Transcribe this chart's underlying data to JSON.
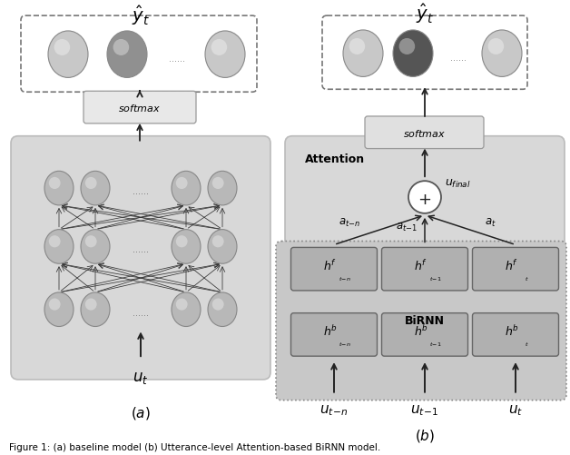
{
  "fig_width": 6.28,
  "fig_height": 5.02,
  "bg_color": "#ffffff",
  "neuron_light": "#d0d0d0",
  "neuron_mid": "#a0a0a0",
  "neuron_dark": "#606060",
  "cell_color": "#b0b0b0",
  "cell_mid_color": "#999999",
  "box_gray": "#d0d0d0",
  "box_light": "#e0e0e0",
  "caption": "Figure 1: (a) baseline model (b) Utterance-level Attention-based BiRNN model."
}
